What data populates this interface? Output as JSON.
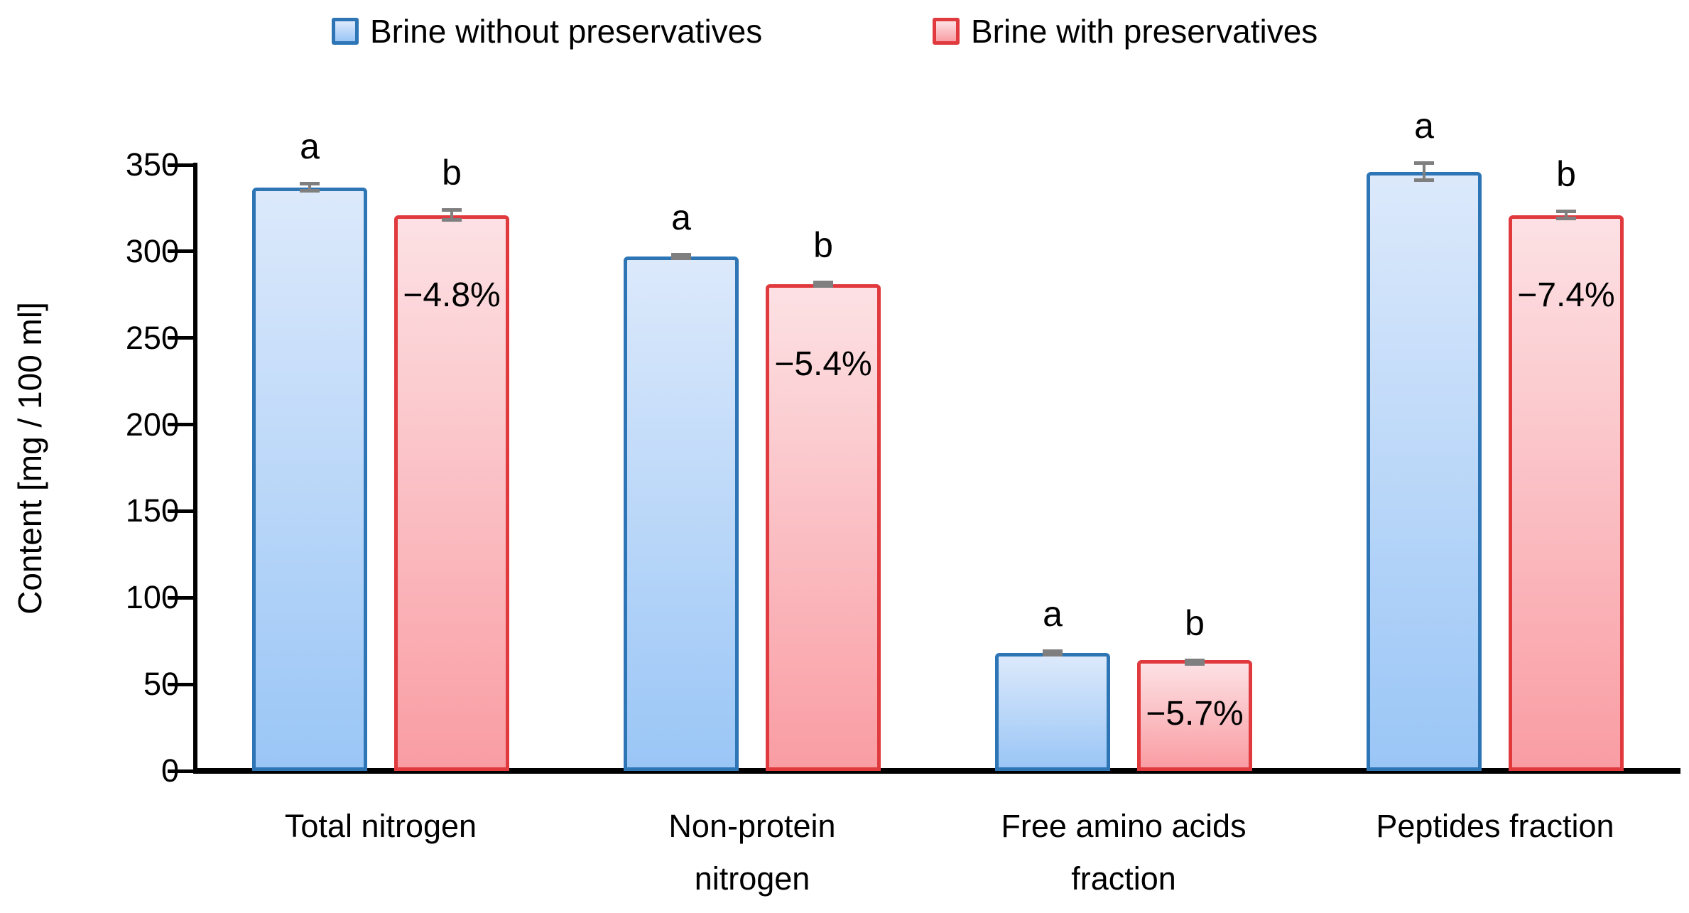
{
  "legend": [
    {
      "label": "Brine without preservatives",
      "color_key": "blue"
    },
    {
      "label": "Brine with preservatives",
      "color_key": "red"
    }
  ],
  "chart_data": {
    "type": "bar",
    "title": "",
    "xlabel": "",
    "ylabel": "Content [mg / 100 ml]",
    "ylim": [
      0,
      350
    ],
    "ytick_step": 50,
    "ytick_labels": [
      "0",
      "50",
      "100",
      "150",
      "200",
      "250",
      "300",
      "350"
    ],
    "grid": false,
    "legend_position": "top",
    "categories": [
      "Total nitrogen",
      "Non-protein nitrogen",
      "Free amino acids fraction",
      "Peptides fraction"
    ],
    "category_label_lines": [
      [
        "Total nitrogen"
      ],
      [
        "Non-protein",
        "nitrogen"
      ],
      [
        "Free amino acids",
        "fraction"
      ],
      [
        "Peptides fraction"
      ]
    ],
    "series": [
      {
        "name": "Brine without preservatives",
        "values": [
          337,
          297,
          68,
          346
        ],
        "errors": [
          3,
          2,
          2,
          6
        ],
        "letters": [
          "a",
          "a",
          "a",
          "a"
        ]
      },
      {
        "name": "Brine with preservatives",
        "values": [
          321,
          281,
          64,
          321
        ],
        "errors": [
          4,
          2,
          1,
          3
        ],
        "letters": [
          "b",
          "b",
          "b",
          "b"
        ],
        "pct_labels": [
          "−4.8%",
          "−5.4%",
          "−5.7%",
          "−7.4%"
        ]
      }
    ],
    "colors": {
      "blue_border": "#2e75b6",
      "blue_top": "#dce9fb",
      "blue_bottom": "#9ac6f6",
      "red_border": "#e03a3e",
      "red_top": "#fce1e4",
      "red_bottom": "#f99da3",
      "error_gray": "#7f7f7f",
      "axis_black": "#000000"
    }
  }
}
